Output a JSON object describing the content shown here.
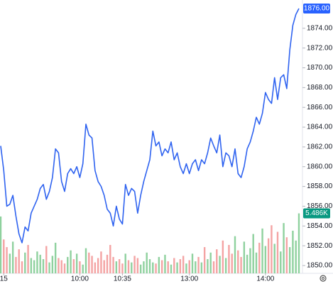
{
  "chart_data": {
    "type": "line",
    "series": [
      {
        "color": "#2f63f0",
        "values": [
          1862.1,
          1859.6,
          1856.0,
          1856.2,
          1857.1,
          1855.0,
          1853.2,
          1852.3,
          1853.9,
          1853.5,
          1855.3,
          1856.0,
          1856.7,
          1857.8,
          1858.2,
          1856.7,
          1857.5,
          1858.9,
          1861.8,
          1861.4,
          1858.5,
          1857.5,
          1859.3,
          1859.8,
          1859.3,
          1860.0,
          1858.9,
          1860.3,
          1864.3,
          1863.2,
          1862.9,
          1859.6,
          1858.5,
          1858.0,
          1857.1,
          1855.7,
          1855.3,
          1854.0,
          1856.0,
          1854.7,
          1854.2,
          1858.2,
          1857.1,
          1857.8,
          1857.5,
          1855.3,
          1857.1,
          1858.5,
          1859.6,
          1860.7,
          1863.6,
          1862.1,
          1862.5,
          1861.1,
          1861.8,
          1861.4,
          1862.5,
          1860.7,
          1861.4,
          1860.0,
          1859.3,
          1860.3,
          1859.3,
          1860.3,
          1860.7,
          1859.6,
          1860.7,
          1860.3,
          1861.4,
          1862.9,
          1862.1,
          1861.4,
          1863.2,
          1860.0,
          1861.4,
          1861.1,
          1860.0,
          1861.8,
          1859.3,
          1858.9,
          1860.0,
          1861.8,
          1862.5,
          1863.6,
          1865.0,
          1864.3,
          1865.4,
          1867.5,
          1866.8,
          1866.4,
          1869.0,
          1866.8,
          1869.0,
          1869.3,
          1867.9,
          1871.8,
          1874.3,
          1875.4,
          1876.0
        ]
      }
    ],
    "volume": {
      "up_color": "#8fd19e",
      "down_color": "#f4a3a3",
      "values": [
        5.2,
        3.1,
        2.4,
        1.8,
        2.9,
        1.5,
        2.2,
        1.1,
        1.9,
        2.6,
        1.4,
        1.2,
        2.0,
        1.7,
        1.3,
        2.5,
        1.0,
        1.6,
        2.8,
        1.4,
        1.2,
        0.9,
        1.5,
        2.1,
        1.3,
        1.8,
        1.1,
        0.8,
        2.3,
        1.9,
        1.6,
        1.0,
        1.4,
        2.0,
        1.2,
        1.7,
        2.6,
        1.5,
        1.1,
        1.3,
        0.9,
        1.8,
        1.2,
        1.0,
        1.6,
        1.4,
        0.8,
        1.1,
        1.9,
        1.3,
        1.0,
        0.9,
        1.5,
        1.2,
        1.7,
        1.1,
        0.8,
        1.4,
        1.0,
        1.3,
        1.6,
        0.9,
        1.2,
        1.8,
        1.1,
        1.5,
        1.0,
        2.4,
        1.3,
        1.9,
        1.1,
        2.2,
        1.6,
        3.0,
        1.4,
        2.6,
        1.8,
        3.4,
        2.1,
        1.5,
        2.9,
        1.7,
        2.3,
        3.6,
        1.9,
        2.8,
        4.1,
        2.5,
        3.2,
        4.4,
        2.7,
        3.8,
        2.0,
        4.6,
        3.3,
        2.4,
        3.9,
        3.0,
        5.486
      ],
      "vlim": [
        0,
        25
      ]
    },
    "last_price": {
      "value": 1876,
      "label": "1876.00",
      "color": "#2962ff"
    },
    "last_volume": {
      "value": 5.486,
      "label": "5.486K",
      "color": "#089981"
    },
    "ylim": [
      1849.21,
      1876.86
    ],
    "yticks": [
      {
        "value": 1850,
        "label": "1850.00"
      },
      {
        "value": 1852,
        "label": "1852.00"
      },
      {
        "value": 1854,
        "label": "1854.00"
      },
      {
        "value": 1856,
        "label": "1856.00"
      },
      {
        "value": 1858,
        "label": "1858.00"
      },
      {
        "value": 1860,
        "label": "1860.00"
      },
      {
        "value": 1862,
        "label": "1862.00"
      },
      {
        "value": 1864,
        "label": "1864.00"
      },
      {
        "value": 1866,
        "label": "1866.00"
      },
      {
        "value": 1868,
        "label": "1868.00"
      },
      {
        "value": 1870,
        "label": "1870.00"
      },
      {
        "value": 1872,
        "label": "1872.00"
      },
      {
        "value": 1874,
        "label": "1874.00"
      }
    ],
    "xticks": [
      {
        "value": 1,
        "label": "15"
      },
      {
        "value": 26,
        "label": "10:00"
      },
      {
        "value": 40,
        "label": "10:35"
      },
      {
        "value": 62,
        "label": "13:00"
      },
      {
        "value": 87,
        "label": "14:00"
      }
    ],
    "grid": false
  }
}
